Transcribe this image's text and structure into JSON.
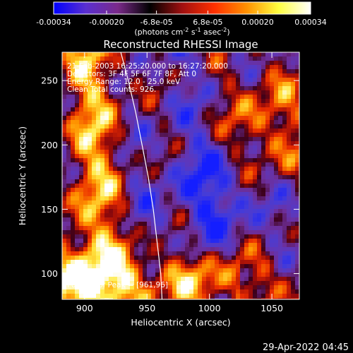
{
  "chart_data": {
    "type": "heatmap",
    "title": "Reconstructed RHESSI Image",
    "colorbar": {
      "ticks": [
        "-0.00034",
        "-0.00020",
        "-6.8e-05",
        "6.8e-05",
        "0.00020",
        "0.00034"
      ],
      "tick_values": [
        -0.00034,
        -0.0002,
        -6.8e-05,
        6.8e-05,
        0.0002,
        0.00034
      ],
      "range": [
        -0.00034,
        0.00034
      ],
      "label_main": "(photons cm",
      "label_exp1": "-2",
      "label_mid": " s",
      "label_exp2": "-1",
      "label_end": " asec",
      "label_exp3": "-2",
      "label_close": ")",
      "colors": [
        "#0000ff",
        "#5a2fd0",
        "#7a2a8a",
        "#000000",
        "#a01010",
        "#ff3000",
        "#ff9000",
        "#ffff40",
        "#ffffff"
      ]
    },
    "xlabel": "Heliocentric X (arcsec)",
    "ylabel": "Heliocentric Y (arcsec)",
    "xlim": [
      882,
      1072
    ],
    "ylim": [
      80,
      272
    ],
    "xticks": [
      900,
      950,
      1000,
      1050
    ],
    "yticks": [
      100,
      150,
      200,
      250
    ],
    "limb_curve": [
      [
        929,
        272
      ],
      [
        935,
        250
      ],
      [
        941,
        225
      ],
      [
        946,
        200
      ],
      [
        951,
        175
      ],
      [
        955,
        150
      ],
      [
        958,
        125
      ],
      [
        961,
        100
      ],
      [
        962,
        80
      ]
    ],
    "annotations": [
      "21-Feb-2003 16:25:20.000 to 16:27:20.000",
      "Detectors: 3F 4F 5F 6F 7F 8F, Att 0",
      "Energy Range: 12.0 - 25.0 keV",
      "Clean     Total counts: 926."
    ],
    "peak_label": "Position of Peak = [961,96]"
  },
  "footer": {
    "timestamp": "29-Apr-2022 04:45"
  }
}
